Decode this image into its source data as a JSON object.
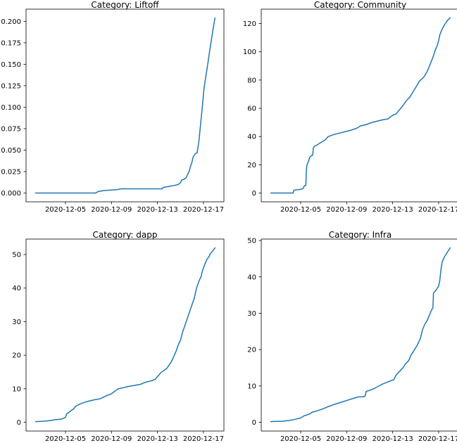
{
  "figure": {
    "background": "#ffffff",
    "text_color": "#000000",
    "line_color": "#1f77b4"
  },
  "chart_data": [
    {
      "type": "line",
      "title": "Category: Liftoff",
      "xlabel": "",
      "ylabel": "",
      "x_unit": "day of December 2020",
      "x_ticks": [
        5,
        9,
        13,
        17
      ],
      "x_tick_labels": [
        "2020-12-05",
        "2020-12-09",
        "2020-12-13",
        "2020-12-17"
      ],
      "y_ticks": [
        0.0,
        0.025,
        0.05,
        0.075,
        0.1,
        0.125,
        0.15,
        0.175,
        0.2
      ],
      "y_tick_labels": [
        "0.000",
        "0.025",
        "0.050",
        "0.075",
        "0.100",
        "0.125",
        "0.150",
        "0.175",
        "0.200"
      ],
      "xlim": [
        1.57,
        18.78
      ],
      "ylim": [
        -0.0102,
        0.2142
      ],
      "grid": false,
      "legend": null,
      "series": [
        {
          "name": "Liftoff",
          "x": [
            2.4,
            7.6,
            7.9,
            8.4,
            9.0,
            9.5,
            9.9,
            13.4,
            13.5,
            14.1,
            14.5,
            14.8,
            15.0,
            15.1,
            15.3,
            15.5,
            15.6,
            15.75,
            15.85,
            16.0,
            16.1,
            16.3,
            16.45,
            16.6,
            16.75,
            16.9,
            17.05,
            17.2,
            17.35,
            17.5,
            17.65,
            17.8,
            17.9,
            18.0
          ],
          "y": [
            0.0,
            0.0,
            0.002,
            0.003,
            0.0035,
            0.004,
            0.005,
            0.005,
            0.0065,
            0.008,
            0.009,
            0.01,
            0.012,
            0.015,
            0.016,
            0.018,
            0.021,
            0.025,
            0.03,
            0.036,
            0.042,
            0.046,
            0.047,
            0.06,
            0.08,
            0.1,
            0.122,
            0.135,
            0.148,
            0.162,
            0.175,
            0.188,
            0.196,
            0.204
          ]
        }
      ]
    },
    {
      "type": "line",
      "title": "Category: Community",
      "xlabel": "",
      "ylabel": "",
      "x_unit": "day of December 2020",
      "x_ticks": [
        5,
        9,
        13,
        17
      ],
      "x_tick_labels": [
        "2020-12-05",
        "2020-12-09",
        "2020-12-13",
        "2020-12-17"
      ],
      "y_ticks": [
        0,
        20,
        40,
        60,
        80,
        100,
        120
      ],
      "y_tick_labels": [
        "0",
        "20",
        "40",
        "60",
        "80",
        "100",
        "120"
      ],
      "xlim": [
        1.57,
        18.78
      ],
      "ylim": [
        -6.2,
        130.2
      ],
      "grid": false,
      "legend": null,
      "series": [
        {
          "name": "Community",
          "x": [
            2.4,
            4.35,
            4.4,
            4.9,
            5.15,
            5.25,
            5.3,
            5.45,
            5.5,
            5.55,
            5.65,
            5.8,
            5.95,
            6.05,
            6.1,
            6.2,
            6.5,
            6.8,
            7.1,
            7.4,
            7.9,
            8.4,
            8.9,
            9.4,
            9.9,
            10.2,
            10.7,
            11.2,
            11.7,
            12.2,
            12.6,
            12.9,
            13.1,
            13.3,
            13.6,
            13.9,
            14.2,
            14.5,
            14.8,
            15.1,
            15.3,
            15.5,
            15.7,
            16.0,
            16.2,
            16.5,
            16.7,
            16.9,
            17.0,
            17.1,
            17.3,
            17.5,
            17.8,
            18.0
          ],
          "y": [
            0,
            0,
            2,
            2.5,
            3,
            3.5,
            5,
            5.5,
            17,
            20,
            22,
            25.5,
            26.5,
            27,
            32,
            33,
            34.5,
            36,
            37.5,
            40,
            41.5,
            42.5,
            43.5,
            44.5,
            46,
            47.5,
            48.5,
            50,
            51,
            52,
            52.5,
            54.5,
            55.5,
            56,
            59,
            62,
            65.5,
            68,
            72,
            76,
            79,
            80.5,
            82,
            86,
            90,
            96,
            101,
            105,
            108,
            112,
            116,
            119,
            122.5,
            124
          ]
        }
      ]
    },
    {
      "type": "line",
      "title": "Category: dapp",
      "xlabel": "",
      "ylabel": "",
      "x_unit": "day of December 2020",
      "x_ticks": [
        5,
        9,
        13,
        17
      ],
      "x_tick_labels": [
        "2020-12-05",
        "2020-12-09",
        "2020-12-13",
        "2020-12-17"
      ],
      "y_ticks": [
        0,
        10,
        20,
        30,
        40,
        50
      ],
      "y_tick_labels": [
        "0",
        "10",
        "20",
        "30",
        "40",
        "50"
      ],
      "xlim": [
        1.57,
        18.78
      ],
      "ylim": [
        -2.6,
        54.6
      ],
      "grid": false,
      "legend": null,
      "series": [
        {
          "name": "dapp",
          "x": [
            2.4,
            3.0,
            3.6,
            4.2,
            4.7,
            5.0,
            5.1,
            5.3,
            5.5,
            5.7,
            5.9,
            6.0,
            6.3,
            6.7,
            7.0,
            7.5,
            8.0,
            8.3,
            8.6,
            9.0,
            9.3,
            9.6,
            10.0,
            10.5,
            11.0,
            11.5,
            12.0,
            12.4,
            12.8,
            13.1,
            13.3,
            13.5,
            13.8,
            14.0,
            14.2,
            14.4,
            14.6,
            14.8,
            15.0,
            15.2,
            15.5,
            15.7,
            16.0,
            16.2,
            16.4,
            16.6,
            16.8,
            16.9,
            17.1,
            17.3,
            17.5,
            17.55,
            17.9,
            18.0
          ],
          "y": [
            0.2,
            0.3,
            0.5,
            0.8,
            1.0,
            1.5,
            2.5,
            3.0,
            3.5,
            4.0,
            4.8,
            5.0,
            5.5,
            6.0,
            6.3,
            6.7,
            7.0,
            7.5,
            8.0,
            8.5,
            9.3,
            10.0,
            10.3,
            10.7,
            11.0,
            11.3,
            12.0,
            12.3,
            12.8,
            14.0,
            14.8,
            15.3,
            16.0,
            17.0,
            18.0,
            19.5,
            21.0,
            23.0,
            24.5,
            27.0,
            30.0,
            32.0,
            35.0,
            37.0,
            40.0,
            42.0,
            43.5,
            45.0,
            47.0,
            48.5,
            49.5,
            50.0,
            51.5,
            52.0
          ]
        }
      ]
    },
    {
      "type": "line",
      "title": "Category: Infra",
      "xlabel": "",
      "ylabel": "",
      "x_unit": "day of December 2020",
      "x_ticks": [
        5,
        9,
        13,
        17
      ],
      "x_tick_labels": [
        "2020-12-05",
        "2020-12-09",
        "2020-12-13",
        "2020-12-17"
      ],
      "y_ticks": [
        0,
        10,
        20,
        30,
        40,
        50
      ],
      "y_tick_labels": [
        "0",
        "10",
        "20",
        "30",
        "40",
        "50"
      ],
      "xlim": [
        1.57,
        18.78
      ],
      "ylim": [
        -2.4,
        50.4
      ],
      "grid": false,
      "legend": null,
      "series": [
        {
          "name": "Infra",
          "x": [
            2.4,
            3.4,
            4.0,
            4.5,
            5.0,
            5.3,
            5.5,
            5.8,
            6.0,
            6.5,
            7.0,
            7.3,
            7.8,
            8.0,
            8.5,
            9.0,
            9.5,
            10.0,
            10.4,
            10.6,
            10.7,
            11.0,
            11.4,
            11.8,
            12.1,
            12.5,
            12.9,
            13.1,
            13.3,
            13.6,
            13.9,
            14.1,
            14.4,
            14.6,
            14.9,
            15.1,
            15.4,
            15.6,
            15.8,
            16.0,
            16.2,
            16.4,
            16.5,
            16.55,
            16.8,
            17.0,
            17.1,
            17.2,
            17.3,
            17.5,
            17.7,
            17.9,
            18.0
          ],
          "y": [
            0.2,
            0.3,
            0.5,
            0.8,
            1.2,
            1.8,
            2.0,
            2.3,
            2.8,
            3.2,
            3.8,
            4.2,
            4.8,
            5.0,
            5.5,
            6.0,
            6.5,
            7.0,
            7.0,
            7.2,
            8.5,
            8.8,
            9.3,
            10.0,
            10.5,
            11.0,
            11.5,
            11.7,
            13.0,
            14.0,
            15.0,
            16.0,
            17.0,
            18.5,
            20.0,
            21.0,
            23.0,
            25.5,
            27.0,
            28.0,
            29.5,
            31.0,
            31.5,
            35.5,
            36.5,
            37.5,
            39.0,
            42.0,
            44.0,
            45.5,
            46.5,
            47.5,
            48.0
          ]
        }
      ]
    }
  ]
}
